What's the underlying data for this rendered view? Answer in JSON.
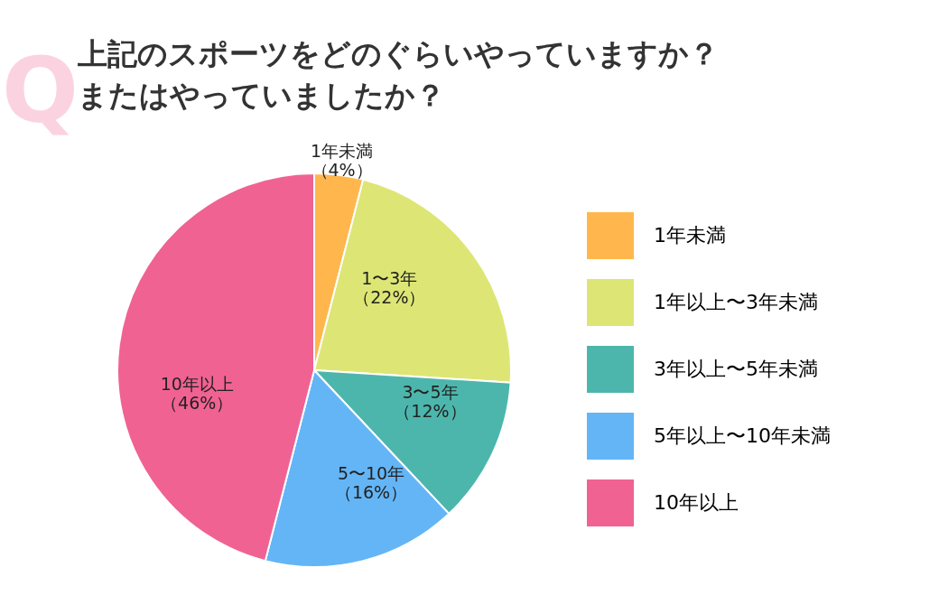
{
  "chart_data": {
    "type": "pie",
    "title": "上記のスポーツをどのぐらいやっていますか？またはやっていましたか？",
    "categories": [
      "1年未満",
      "1年以上〜3年未満",
      "3年以上〜5年未満",
      "5年以上〜10年未満",
      "10年以上"
    ],
    "values": [
      4,
      22,
      12,
      16,
      46
    ],
    "colors": [
      "#ffb74d",
      "#dde674",
      "#4db6ac",
      "#64b5f6",
      "#f06292"
    ],
    "value_labels": [
      "1年未満（4%）",
      "1〜3年（22%）",
      "3〜5年（12%）",
      "5〜10年（16%）",
      "10年以上（46%）"
    ],
    "annotations": [
      "Q"
    ],
    "legend": "right"
  }
}
